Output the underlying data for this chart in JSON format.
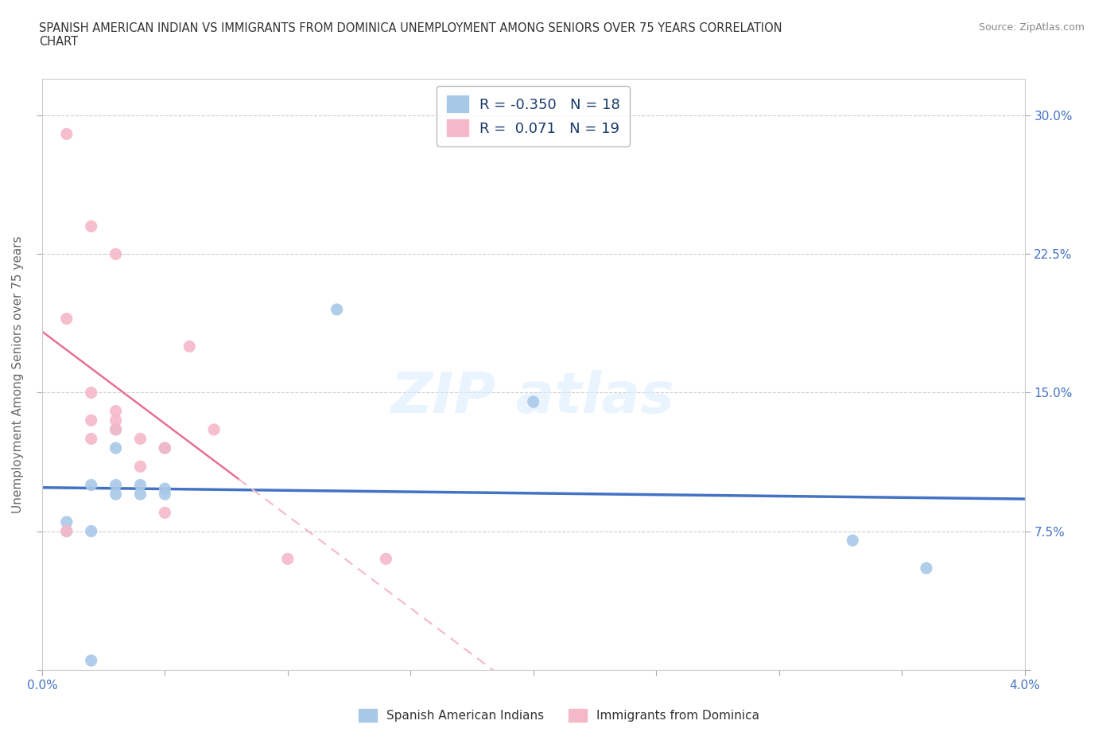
{
  "title": "SPANISH AMERICAN INDIAN VS IMMIGRANTS FROM DOMINICA UNEMPLOYMENT AMONG SENIORS OVER 75 YEARS CORRELATION\nCHART",
  "source": "Source: ZipAtlas.com",
  "ylabel": "Unemployment Among Seniors over 75 years",
  "xlim": [
    0.0,
    0.04
  ],
  "ylim": [
    0.0,
    0.32
  ],
  "xticks": [
    0.0,
    0.005,
    0.01,
    0.015,
    0.02,
    0.025,
    0.03,
    0.035,
    0.04
  ],
  "yticks": [
    0.0,
    0.075,
    0.15,
    0.225,
    0.3
  ],
  "blue_scatter_x": [
    0.001,
    0.001,
    0.002,
    0.002,
    0.002,
    0.003,
    0.003,
    0.003,
    0.003,
    0.004,
    0.004,
    0.005,
    0.005,
    0.005,
    0.012,
    0.02,
    0.033,
    0.036
  ],
  "blue_scatter_y": [
    0.075,
    0.08,
    0.005,
    0.075,
    0.1,
    0.095,
    0.1,
    0.12,
    0.13,
    0.095,
    0.1,
    0.095,
    0.098,
    0.12,
    0.195,
    0.145,
    0.07,
    0.055
  ],
  "pink_scatter_x": [
    0.001,
    0.001,
    0.001,
    0.002,
    0.002,
    0.002,
    0.002,
    0.003,
    0.003,
    0.003,
    0.003,
    0.004,
    0.004,
    0.005,
    0.005,
    0.006,
    0.007,
    0.01,
    0.014
  ],
  "pink_scatter_y": [
    0.075,
    0.19,
    0.29,
    0.24,
    0.15,
    0.125,
    0.135,
    0.13,
    0.135,
    0.14,
    0.225,
    0.11,
    0.125,
    0.085,
    0.12,
    0.175,
    0.13,
    0.06,
    0.06
  ],
  "blue_color": "#a8c8e8",
  "pink_color": "#f5b8c8",
  "blue_line_color": "#4472c4",
  "pink_line_color": "#e87090",
  "pink_dash_color": "#f5b8c8",
  "blue_R": -0.35,
  "blue_N": 18,
  "pink_R": 0.071,
  "pink_N": 19,
  "scatter_size": 120,
  "background_color": "#ffffff",
  "grid_color": "#cccccc",
  "tick_color": "#aaaaaa",
  "label_color": "#4472c4",
  "text_color": "#333333"
}
